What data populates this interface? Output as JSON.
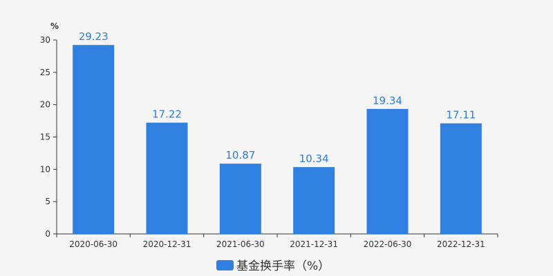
{
  "chart_data": {
    "type": "bar",
    "categories": [
      "2020-06-30",
      "2020-12-31",
      "2021-06-30",
      "2021-12-31",
      "2022-06-30",
      "2022-12-31"
    ],
    "values": [
      29.23,
      17.22,
      10.87,
      10.34,
      19.34,
      17.11
    ],
    "value_labels": [
      "29.23",
      "17.22",
      "10.87",
      "10.34",
      "19.34",
      "17.11"
    ],
    "y_unit": "%",
    "ylim": [
      0,
      30
    ],
    "y_ticks": [
      0,
      5,
      10,
      15,
      20,
      25,
      30
    ],
    "grid": false,
    "legend": {
      "position": "bottom-center",
      "entries": [
        "基金换手率（%）"
      ]
    },
    "series": [
      {
        "name": "基金换手率（%）",
        "color": "#2f80e0"
      }
    ]
  }
}
